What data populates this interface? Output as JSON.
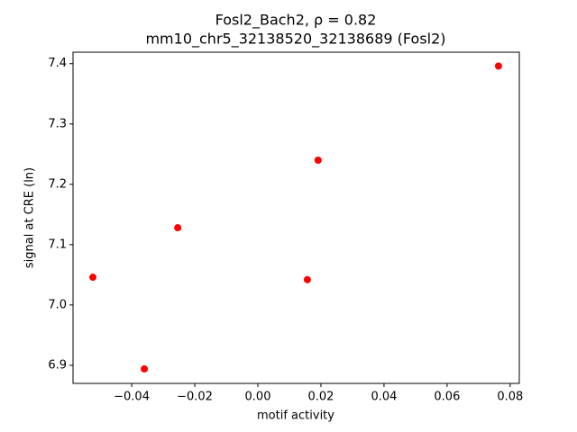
{
  "chart_data": {
    "type": "scatter",
    "title": "Fosl2_Bach2, ρ = 0.82",
    "subtitle": "mm10_chr5_32138520_32138689 (Fosl2)",
    "x_label": "motif activity",
    "y_label": "signal at CRE (ln)",
    "x": [
      -0.0523,
      -0.036,
      -0.0254,
      0.0157,
      0.0191,
      0.0763
    ],
    "values": [
      7.046,
      6.894,
      7.128,
      7.042,
      7.24,
      7.396
    ],
    "color": "#ff0000",
    "xlim": [
      -0.0586,
      0.0829
    ],
    "ylim": [
      6.87,
      7.419
    ],
    "xticks": [
      {
        "value": -0.04,
        "label": "−0.04"
      },
      {
        "value": -0.02,
        "label": "−0.02"
      },
      {
        "value": 0,
        "label": "0.00"
      },
      0.02,
      0.04,
      0.06,
      0.08
    ],
    "yticks": [
      6.9,
      {
        "value": 7,
        "label": "7.0"
      },
      7.1,
      7.2,
      7.3,
      7.4
    ],
    "grid": false
  }
}
